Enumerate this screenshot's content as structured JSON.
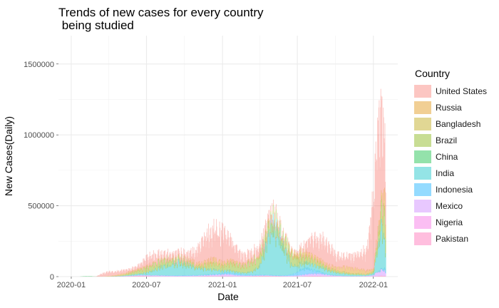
{
  "chart_data": {
    "type": "area",
    "title": "Trends of new cases for every country\n being studied",
    "title_lines": [
      "Trends of new cases for every country",
      " being studied"
    ],
    "xlabel": "Date",
    "ylabel": "New Cases(Daily)",
    "legend_title": "Country",
    "legend_position": "right",
    "grid": true,
    "stacked": true,
    "x_range": [
      "2019-12-01",
      "2022-03-01"
    ],
    "ylim": [
      0,
      1700000
    ],
    "x_ticks": [
      {
        "label": "2020-01",
        "date": "2020-01-01"
      },
      {
        "label": "2020-07",
        "date": "2020-07-01"
      },
      {
        "label": "2021-01",
        "date": "2021-01-01"
      },
      {
        "label": "2021-07",
        "date": "2021-07-01"
      },
      {
        "label": "2022-01",
        "date": "2022-01-01"
      }
    ],
    "y_ticks": [
      {
        "label": "0",
        "value": 0
      },
      {
        "label": "500000",
        "value": 500000
      },
      {
        "label": "1000000",
        "value": 1000000
      },
      {
        "label": "1500000",
        "value": 1500000
      }
    ],
    "x": [
      "2020-01-20",
      "2020-02-01",
      "2020-02-15",
      "2020-03-01",
      "2020-03-15",
      "2020-04-01",
      "2020-04-15",
      "2020-05-01",
      "2020-05-15",
      "2020-06-01",
      "2020-06-15",
      "2020-07-01",
      "2020-07-15",
      "2020-08-01",
      "2020-08-15",
      "2020-09-01",
      "2020-09-15",
      "2020-10-01",
      "2020-10-15",
      "2020-11-01",
      "2020-11-15",
      "2020-12-01",
      "2020-12-15",
      "2021-01-01",
      "2021-01-15",
      "2021-02-01",
      "2021-02-15",
      "2021-03-01",
      "2021-03-15",
      "2021-04-01",
      "2021-04-15",
      "2021-05-01",
      "2021-05-15",
      "2021-06-01",
      "2021-06-15",
      "2021-07-01",
      "2021-07-15",
      "2021-08-01",
      "2021-08-15",
      "2021-09-01",
      "2021-09-15",
      "2021-10-01",
      "2021-10-15",
      "2021-11-01",
      "2021-11-15",
      "2021-12-01",
      "2021-12-15",
      "2022-01-01",
      "2022-01-10",
      "2022-01-20",
      "2022-01-31"
    ],
    "series": [
      {
        "name": "United States",
        "color": "#F8766D",
        "values": [
          0,
          0,
          0,
          1000,
          20000,
          30000,
          30000,
          25000,
          22000,
          20000,
          30000,
          60000,
          65000,
          50000,
          40000,
          38000,
          38000,
          45000,
          60000,
          100000,
          160000,
          200000,
          220000,
          220000,
          180000,
          110000,
          70000,
          60000,
          55000,
          65000,
          65000,
          45000,
          30000,
          15000,
          12000,
          15000,
          40000,
          100000,
          140000,
          160000,
          140000,
          100000,
          80000,
          75000,
          90000,
          110000,
          150000,
          500000,
          750000,
          650000,
          350000
        ]
      },
      {
        "name": "Russia",
        "color": "#DE8C00",
        "values": [
          0,
          0,
          0,
          0,
          100,
          3000,
          5000,
          9000,
          9000,
          8500,
          7500,
          6500,
          6000,
          5000,
          5000,
          5000,
          6000,
          9000,
          14000,
          18000,
          22000,
          27000,
          28000,
          25000,
          21000,
          16000,
          13000,
          11000,
          9000,
          8500,
          8500,
          8500,
          8000,
          9000,
          15000,
          24000,
          24000,
          22000,
          21000,
          18000,
          20000,
          25000,
          33000,
          40000,
          37000,
          32000,
          27000,
          18000,
          20000,
          40000,
          125000
        ]
      },
      {
        "name": "Bangladesh",
        "color": "#B79F00",
        "values": [
          0,
          0,
          0,
          0,
          10,
          100,
          300,
          600,
          1200,
          2500,
          3300,
          3500,
          3000,
          2700,
          2500,
          1800,
          1500,
          1400,
          1300,
          1600,
          1900,
          2100,
          1500,
          900,
          600,
          400,
          400,
          500,
          1500,
          5000,
          6000,
          3000,
          1000,
          1200,
          3500,
          9000,
          14000,
          13000,
          8000,
          4000,
          2000,
          800,
          400,
          200,
          200,
          250,
          300,
          500,
          2000,
          8000,
          12000
        ]
      },
      {
        "name": "Brazil",
        "color": "#7CAE00",
        "values": [
          0,
          0,
          0,
          0,
          20,
          500,
          1500,
          5000,
          10000,
          20000,
          28000,
          35000,
          42000,
          45000,
          42000,
          35000,
          30000,
          28000,
          23000,
          15000,
          25000,
          40000,
          45000,
          35000,
          50000,
          55000,
          50000,
          60000,
          75000,
          75000,
          65000,
          60000,
          65000,
          70000,
          80000,
          60000,
          45000,
          35000,
          30000,
          25000,
          15000,
          15000,
          12000,
          10000,
          9000,
          10000,
          5000,
          15000,
          60000,
          150000,
          180000
        ]
      },
      {
        "name": "China",
        "color": "#00BA38",
        "values": [
          0,
          3000,
          3500,
          500,
          30,
          100,
          80,
          10,
          10,
          10,
          10,
          20,
          70,
          80,
          30,
          20,
          10,
          15,
          15,
          20,
          20,
          15,
          20,
          30,
          120,
          50,
          10,
          10,
          10,
          15,
          20,
          15,
          15,
          25,
          30,
          20,
          30,
          100,
          80,
          40,
          40,
          30,
          40,
          50,
          50,
          50,
          100,
          200,
          150,
          100,
          80
        ]
      },
      {
        "name": "India",
        "color": "#00BFC4",
        "values": [
          0,
          0,
          0,
          0,
          10,
          200,
          1000,
          2000,
          4500,
          8000,
          12000,
          18000,
          30000,
          55000,
          65000,
          80000,
          95000,
          80000,
          70000,
          50000,
          42000,
          38000,
          30000,
          20000,
          18000,
          12000,
          11000,
          15000,
          25000,
          60000,
          200000,
          350000,
          300000,
          180000,
          80000,
          45000,
          40000,
          40000,
          38000,
          35000,
          30000,
          22000,
          17000,
          14000,
          11000,
          9000,
          7000,
          12000,
          150000,
          300000,
          150000
        ]
      },
      {
        "name": "Indonesia",
        "color": "#00A9FF",
        "values": [
          0,
          0,
          0,
          0,
          10,
          100,
          300,
          400,
          600,
          600,
          1000,
          1300,
          1500,
          2000,
          2200,
          3000,
          3500,
          4000,
          4000,
          4000,
          4500,
          5000,
          6500,
          7500,
          11000,
          12000,
          9000,
          7000,
          6000,
          5500,
          5000,
          5000,
          4000,
          5000,
          9000,
          25000,
          45000,
          35000,
          20000,
          8000,
          3000,
          1500,
          1000,
          400,
          400,
          300,
          200,
          500,
          1000,
          4000,
          15000
        ]
      },
      {
        "name": "Mexico",
        "color": "#C77CFF",
        "values": [
          0,
          0,
          0,
          0,
          10,
          100,
          500,
          1500,
          2500,
          3000,
          5000,
          6000,
          6500,
          7000,
          6000,
          5500,
          4500,
          5000,
          5000,
          5500,
          6000,
          8000,
          10000,
          12000,
          15000,
          10000,
          7000,
          5000,
          4000,
          3500,
          3000,
          2500,
          2200,
          3000,
          4500,
          7000,
          12000,
          17000,
          18000,
          15000,
          10000,
          6000,
          4000,
          3000,
          2500,
          2500,
          2500,
          10000,
          30000,
          40000,
          35000
        ]
      },
      {
        "name": "Nigeria",
        "color": "#F564E3",
        "values": [
          0,
          0,
          0,
          0,
          0,
          10,
          50,
          200,
          300,
          400,
          600,
          600,
          500,
          400,
          300,
          200,
          150,
          150,
          150,
          200,
          300,
          500,
          800,
          1200,
          1500,
          1000,
          600,
          400,
          300,
          150,
          100,
          100,
          80,
          80,
          50,
          100,
          300,
          500,
          600,
          500,
          400,
          200,
          100,
          100,
          100,
          300,
          1500,
          1000,
          500,
          300,
          200
        ]
      },
      {
        "name": "Pakistan",
        "color": "#FF64B0",
        "values": [
          0,
          0,
          0,
          0,
          20,
          200,
          400,
          1000,
          1700,
          4000,
          5000,
          3500,
          2000,
          800,
          600,
          500,
          600,
          700,
          800,
          1300,
          2500,
          3000,
          2500,
          2000,
          1500,
          1200,
          1100,
          1500,
          3000,
          5000,
          5000,
          4500,
          3000,
          1500,
          1000,
          1200,
          2500,
          4000,
          4000,
          3000,
          2000,
          1000,
          700,
          500,
          400,
          400,
          400,
          600,
          3000,
          7000,
          5000
        ]
      }
    ]
  }
}
